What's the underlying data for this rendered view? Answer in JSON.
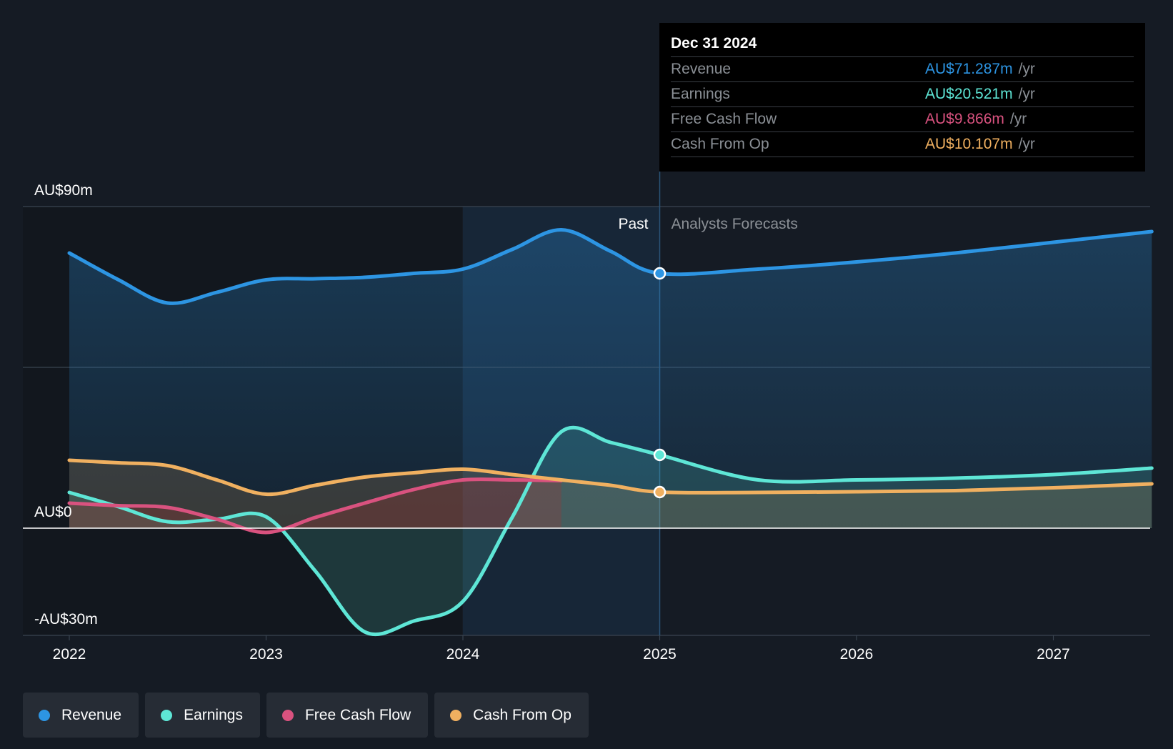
{
  "tooltip": {
    "date": "Dec 31 2024",
    "rows": [
      {
        "label": "Revenue",
        "value": "AU$71.287m",
        "unit": "/yr",
        "color": "#2d95e3"
      },
      {
        "label": "Earnings",
        "value": "AU$20.521m",
        "unit": "/yr",
        "color": "#5ee6d6"
      },
      {
        "label": "Free Cash Flow",
        "value": "AU$9.866m",
        "unit": "/yr",
        "color": "#d9527f"
      },
      {
        "label": "Cash From Op",
        "value": "AU$10.107m",
        "unit": "/yr",
        "color": "#f0b060"
      }
    ]
  },
  "legend": [
    {
      "label": "Revenue",
      "color": "#2d95e3"
    },
    {
      "label": "Earnings",
      "color": "#5ee6d6"
    },
    {
      "label": "Free Cash Flow",
      "color": "#d9527f"
    },
    {
      "label": "Cash From Op",
      "color": "#f0b060"
    }
  ],
  "chart_data": {
    "type": "line",
    "title": "",
    "xlabel": "",
    "ylabel": "",
    "x_ticks": [
      "2022",
      "2023",
      "2024",
      "2025",
      "2026",
      "2027"
    ],
    "x_range": [
      2021.77,
      2027.5
    ],
    "y_labels": [
      {
        "value": 90,
        "label": "AU$90m"
      },
      {
        "value": 0,
        "label": "AU$0"
      },
      {
        "value": -30,
        "label": "-AU$30m"
      }
    ],
    "ylim": [
      -30,
      90
    ],
    "past_label": "Past",
    "forecast_label": "Analysts Forecasts",
    "divider_x": 2025.0,
    "highlight_start": 2024.0,
    "series": [
      {
        "name": "Revenue",
        "color": "#2d95e3",
        "x": [
          2022.0,
          2022.25,
          2022.5,
          2022.75,
          2023.0,
          2023.25,
          2023.5,
          2023.75,
          2024.0,
          2024.25,
          2024.5,
          2024.75,
          2025.0,
          2025.5,
          2026.0,
          2026.5,
          2027.0,
          2027.5
        ],
        "y": [
          77,
          69.5,
          63,
          66,
          69.5,
          69.8,
          70.2,
          71.3,
          72.5,
          78,
          83.5,
          77.5,
          71.3,
          72.5,
          74.5,
          77,
          80,
          83
        ]
      },
      {
        "name": "Earnings",
        "color": "#5ee6d6",
        "x": [
          2022.0,
          2022.25,
          2022.5,
          2022.75,
          2023.0,
          2023.25,
          2023.5,
          2023.75,
          2024.0,
          2024.25,
          2024.5,
          2024.75,
          2025.0,
          2025.5,
          2026.0,
          2026.5,
          2027.0,
          2027.5
        ],
        "y": [
          10,
          6,
          1.8,
          2.5,
          3.2,
          -12,
          -29,
          -26,
          -20.5,
          3,
          27,
          24,
          20.5,
          13.5,
          13.5,
          14,
          15,
          16.8
        ]
      },
      {
        "name": "Free Cash Flow",
        "color": "#d9527f",
        "x": [
          2022.0,
          2022.25,
          2022.5,
          2022.75,
          2023.0,
          2023.25,
          2023.5,
          2023.75,
          2024.0,
          2024.25,
          2024.5
        ],
        "y": [
          7,
          6.3,
          5.8,
          2.5,
          -1.2,
          3,
          7,
          10.8,
          13.5,
          13.5,
          13.3
        ]
      },
      {
        "name": "Cash From Op",
        "color": "#f0b060",
        "x": [
          2022.0,
          2022.25,
          2022.5,
          2022.75,
          2023.0,
          2023.25,
          2023.5,
          2023.75,
          2024.0,
          2024.25,
          2024.5,
          2024.75,
          2025.0,
          2025.5,
          2026.0,
          2026.5,
          2027.0,
          2027.5
        ],
        "y": [
          19,
          18.3,
          17.5,
          13.5,
          9.5,
          12,
          14.3,
          15.5,
          16.5,
          15,
          13.5,
          12,
          10.1,
          10,
          10.2,
          10.5,
          11.3,
          12.4
        ]
      }
    ],
    "markers": [
      {
        "series": "Revenue",
        "x": 2025.0,
        "y": 71.3
      },
      {
        "series": "Earnings",
        "x": 2025.0,
        "y": 20.5
      },
      {
        "series": "Cash From Op",
        "x": 2025.0,
        "y": 10.1
      }
    ]
  }
}
